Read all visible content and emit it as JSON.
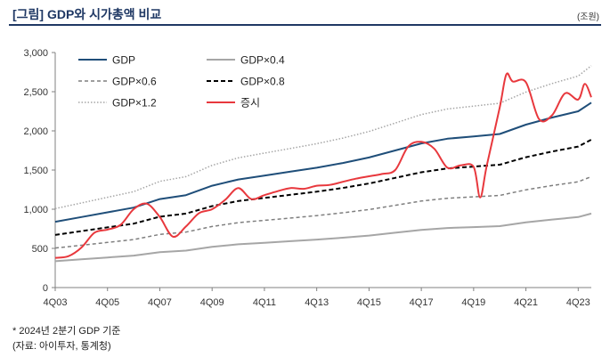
{
  "header": {
    "title": "[그림] GDP와 시가총액 비교",
    "unit": "(조원)"
  },
  "footnotes": [
    "* 2024년 2분기 GDP 기준",
    "(자료: 아이투자, 통계청)"
  ],
  "colors": {
    "gdp": "#1f4e79",
    "gdp04": "#a6a6a6",
    "gdp06": "#7f7f7f",
    "gdp08": "#000000",
    "gdp12": "#a6a6a6",
    "stock": "#e8383d"
  },
  "chart_data": {
    "type": "line",
    "title": "",
    "xlabel": "",
    "ylabel": "",
    "x_ticks": [
      "4Q03",
      "4Q05",
      "4Q07",
      "4Q09",
      "4Q11",
      "4Q13",
      "4Q15",
      "4Q17",
      "4Q19",
      "4Q21",
      "4Q23"
    ],
    "xlim": [
      "4Q03",
      "2Q24"
    ],
    "ylim": [
      0,
      3000
    ],
    "y_ticks": [
      "0",
      "500",
      "1,000",
      "1,500",
      "2,000",
      "2,500",
      "3,000"
    ],
    "grid": false,
    "legend_position": "top-left",
    "legend_order": [
      "GDP",
      "GDP×0.4",
      "GDP×0.6",
      "GDP×0.8",
      "GDP×1.2",
      "증시"
    ],
    "series": [
      {
        "name": "GDP",
        "style": "solid",
        "color": "#1f4e79",
        "x": [
          "4Q03",
          "4Q04",
          "4Q05",
          "4Q06",
          "4Q07",
          "4Q08",
          "4Q09",
          "4Q10",
          "4Q11",
          "4Q12",
          "4Q13",
          "4Q14",
          "4Q15",
          "4Q16",
          "4Q17",
          "4Q18",
          "4Q19",
          "4Q20",
          "4Q21",
          "4Q22",
          "4Q23",
          "2Q24"
        ],
        "values": [
          840,
          900,
          960,
          1020,
          1130,
          1180,
          1300,
          1380,
          1430,
          1480,
          1530,
          1590,
          1660,
          1750,
          1840,
          1900,
          1930,
          1960,
          2080,
          2170,
          2250,
          2360
        ]
      },
      {
        "name": "GDP×0.4",
        "style": "solid",
        "color": "#a6a6a6",
        "x": [
          "4Q03",
          "4Q04",
          "4Q05",
          "4Q06",
          "4Q07",
          "4Q08",
          "4Q09",
          "4Q10",
          "4Q11",
          "4Q12",
          "4Q13",
          "4Q14",
          "4Q15",
          "4Q16",
          "4Q17",
          "4Q18",
          "4Q19",
          "4Q20",
          "4Q21",
          "4Q22",
          "4Q23",
          "2Q24"
        ],
        "values": [
          336,
          360,
          384,
          408,
          452,
          472,
          520,
          552,
          572,
          592,
          612,
          636,
          664,
          700,
          736,
          760,
          772,
          784,
          832,
          868,
          900,
          944
        ]
      },
      {
        "name": "GDP×0.6",
        "style": "dashed",
        "color": "#7f7f7f",
        "x": [
          "4Q03",
          "4Q04",
          "4Q05",
          "4Q06",
          "4Q07",
          "4Q08",
          "4Q09",
          "4Q10",
          "4Q11",
          "4Q12",
          "4Q13",
          "4Q14",
          "4Q15",
          "4Q16",
          "4Q17",
          "4Q18",
          "4Q19",
          "4Q20",
          "4Q21",
          "4Q22",
          "4Q23",
          "2Q24"
        ],
        "values": [
          504,
          540,
          576,
          612,
          678,
          708,
          780,
          828,
          858,
          888,
          918,
          954,
          996,
          1050,
          1104,
          1140,
          1158,
          1176,
          1248,
          1302,
          1350,
          1416
        ]
      },
      {
        "name": "GDP×0.8",
        "style": "dashed-bold",
        "color": "#000000",
        "x": [
          "4Q03",
          "4Q04",
          "4Q05",
          "4Q06",
          "4Q07",
          "4Q08",
          "4Q09",
          "4Q10",
          "4Q11",
          "4Q12",
          "4Q13",
          "4Q14",
          "4Q15",
          "4Q16",
          "4Q17",
          "4Q18",
          "4Q19",
          "4Q20",
          "4Q21",
          "4Q22",
          "4Q23",
          "2Q24"
        ],
        "values": [
          672,
          720,
          768,
          816,
          904,
          944,
          1040,
          1104,
          1144,
          1184,
          1224,
          1272,
          1328,
          1400,
          1472,
          1520,
          1544,
          1568,
          1664,
          1736,
          1800,
          1888
        ]
      },
      {
        "name": "GDP×1.2",
        "style": "dotted",
        "color": "#a6a6a6",
        "x": [
          "4Q03",
          "4Q04",
          "4Q05",
          "4Q06",
          "4Q07",
          "4Q08",
          "4Q09",
          "4Q10",
          "4Q11",
          "4Q12",
          "4Q13",
          "4Q14",
          "4Q15",
          "4Q16",
          "4Q17",
          "4Q18",
          "4Q19",
          "4Q20",
          "4Q21",
          "4Q22",
          "4Q23",
          "2Q24"
        ],
        "values": [
          1008,
          1080,
          1152,
          1224,
          1356,
          1416,
          1560,
          1656,
          1716,
          1776,
          1836,
          1908,
          1992,
          2100,
          2208,
          2280,
          2316,
          2352,
          2496,
          2604,
          2700,
          2832
        ]
      },
      {
        "name": "증시",
        "style": "solid",
        "color": "#e8383d",
        "x": [
          "4Q03",
          "2Q04",
          "4Q04",
          "2Q05",
          "4Q05",
          "2Q06",
          "4Q06",
          "2Q07",
          "4Q07",
          "2Q08",
          "4Q08",
          "2Q09",
          "4Q09",
          "2Q10",
          "4Q10",
          "2Q11",
          "4Q11",
          "2Q12",
          "4Q12",
          "2Q13",
          "4Q13",
          "2Q14",
          "4Q14",
          "2Q15",
          "4Q15",
          "2Q16",
          "4Q16",
          "2Q17",
          "4Q17",
          "2Q18",
          "4Q18",
          "2Q19",
          "4Q19",
          "1Q20",
          "2Q20",
          "4Q20",
          "1Q21",
          "2Q21",
          "4Q21",
          "2Q22",
          "4Q22",
          "2Q23",
          "4Q23",
          "1Q24",
          "2Q24"
        ],
        "values": [
          380,
          400,
          510,
          700,
          740,
          800,
          1000,
          1070,
          900,
          650,
          780,
          950,
          1000,
          1120,
          1270,
          1130,
          1180,
          1230,
          1270,
          1260,
          1300,
          1310,
          1350,
          1390,
          1420,
          1450,
          1500,
          1800,
          1860,
          1770,
          1530,
          1560,
          1540,
          1150,
          1550,
          2300,
          2720,
          2630,
          2620,
          2150,
          2200,
          2480,
          2400,
          2600,
          2430
        ]
      }
    ]
  }
}
